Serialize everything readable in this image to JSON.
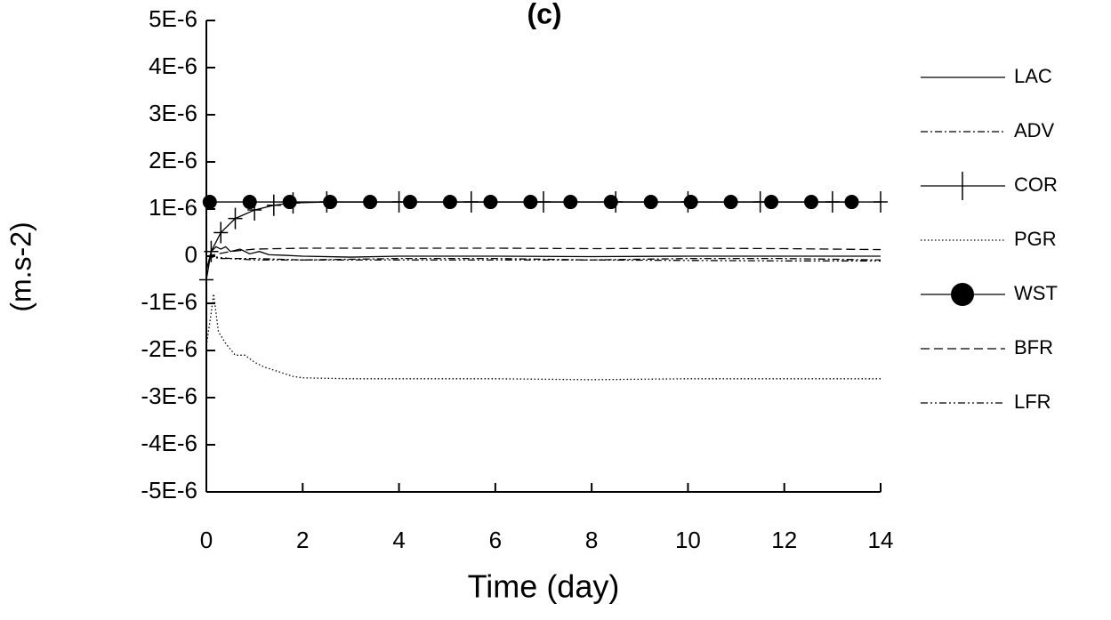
{
  "chart_data": {
    "type": "line",
    "title": "(c)",
    "x_label": "Time (day)",
    "y_label": "(m.s-2)",
    "xlim": [
      0,
      14
    ],
    "xticks": [
      0,
      2,
      4,
      6,
      8,
      10,
      12,
      14
    ],
    "ylim": [
      -5e-06,
      5e-06
    ],
    "yticks": [
      {
        "value": -5e-06,
        "label": "-5E-6"
      },
      {
        "value": -4e-06,
        "label": "-4E-6"
      },
      {
        "value": -3e-06,
        "label": "-3E-6"
      },
      {
        "value": -2e-06,
        "label": "-2E-6"
      },
      {
        "value": -1e-06,
        "label": "-1E-6"
      },
      0,
      {
        "value": 1e-06,
        "label": "1E-6"
      },
      {
        "value": 2e-06,
        "label": "2E-6"
      },
      {
        "value": 3e-06,
        "label": "3E-6"
      },
      {
        "value": 4e-06,
        "label": "4E-6"
      },
      {
        "value": 5e-06,
        "label": "5E-6"
      }
    ],
    "legend": "right",
    "series": [
      {
        "name": "LAC",
        "color": "#000000",
        "style": "solid",
        "x": [
          0,
          0.1,
          0.2,
          0.3,
          0.4,
          0.5,
          0.7,
          0.9,
          1.1,
          1.3,
          1.6,
          2,
          3,
          4,
          6,
          8,
          10,
          12,
          14
        ],
        "values": [
          -3e-07,
          1e-07,
          2e-07,
          1.5e-07,
          2e-07,
          1e-07,
          1.5e-07,
          5e-08,
          1e-07,
          3e-08,
          2e-08,
          0,
          -2e-08,
          0,
          0,
          -1e-08,
          0,
          0,
          0
        ]
      },
      {
        "name": "ADV",
        "color": "#000000",
        "style": "dashdot",
        "x": [
          0,
          0.3,
          1,
          2,
          4,
          6,
          8,
          10,
          12,
          14
        ],
        "values": [
          0,
          -5e-08,
          -5e-08,
          -8e-08,
          -5e-08,
          -5e-08,
          -8e-08,
          -5e-08,
          -5e-08,
          -8e-08
        ]
      },
      {
        "name": "COR",
        "color": "#000000",
        "style": "solid",
        "marker": "cross",
        "x": [
          0,
          0.1,
          0.3,
          0.6,
          1,
          1.4,
          1.8,
          2.5,
          4,
          5.5,
          7,
          8.5,
          10,
          11.5,
          13,
          14
        ],
        "values": [
          -5e-07,
          1e-07,
          5e-07,
          8e-07,
          9.8e-07,
          1.08e-06,
          1.13e-06,
          1.15e-06,
          1.15e-06,
          1.15e-06,
          1.15e-06,
          1.15e-06,
          1.15e-06,
          1.15e-06,
          1.15e-06,
          1.15e-06
        ]
      },
      {
        "name": "PGR",
        "color": "#000000",
        "style": "dotted",
        "x": [
          0,
          0.1,
          0.15,
          0.25,
          0.4,
          0.6,
          0.8,
          1,
          1.2,
          1.5,
          1.8,
          2,
          3,
          4,
          6,
          8,
          10,
          12,
          14
        ],
        "values": [
          -1.9e-06,
          -1.2e-06,
          -8e-07,
          -1.6e-06,
          -1.85e-06,
          -2.1e-06,
          -2.1e-06,
          -2.25e-06,
          -2.35e-06,
          -2.45e-06,
          -2.55e-06,
          -2.58e-06,
          -2.6e-06,
          -2.6e-06,
          -2.6e-06,
          -2.62e-06,
          -2.6e-06,
          -2.6e-06,
          -2.6e-06
        ]
      },
      {
        "name": "WST",
        "color": "#000000",
        "style": "solid",
        "marker": "circle",
        "x": [
          0.07,
          0.9,
          1.73,
          2.57,
          3.4,
          4.23,
          5.06,
          5.9,
          6.73,
          7.56,
          8.4,
          9.23,
          10.06,
          10.89,
          11.73,
          12.56,
          13.4
        ],
        "values": [
          1.15e-06,
          1.15e-06,
          1.15e-06,
          1.15e-06,
          1.15e-06,
          1.15e-06,
          1.15e-06,
          1.15e-06,
          1.15e-06,
          1.15e-06,
          1.15e-06,
          1.15e-06,
          1.15e-06,
          1.15e-06,
          1.15e-06,
          1.15e-06,
          1.15e-06
        ]
      },
      {
        "name": "BFR",
        "color": "#000000",
        "style": "dashed",
        "x": [
          0,
          0.5,
          1,
          2,
          4,
          6,
          8,
          10,
          12,
          14
        ],
        "values": [
          0,
          1e-07,
          1.5e-07,
          1.7e-07,
          1.7e-07,
          1.7e-07,
          1.6e-07,
          1.7e-07,
          1.6e-07,
          1.4e-07
        ]
      },
      {
        "name": "LFR",
        "color": "#000000",
        "style": "dashdotdot",
        "x": [
          0,
          0.5,
          1,
          2,
          4,
          6,
          8,
          10,
          12,
          14
        ],
        "values": [
          0,
          -5e-08,
          -8e-08,
          -8e-08,
          -8e-08,
          -8e-08,
          -8e-08,
          -9e-08,
          -1e-07,
          -1e-07
        ]
      }
    ]
  }
}
